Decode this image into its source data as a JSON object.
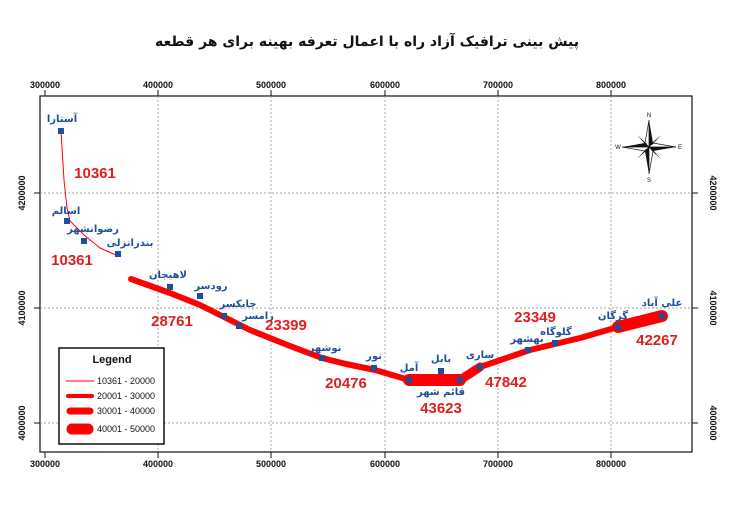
{
  "title": "پیش بینی ترافیک آزاد راه با اعمال تعرفه بهینه برای هر قطعه",
  "x_ticks": [
    "300000",
    "400000",
    "500000",
    "600000",
    "700000",
    "800000"
  ],
  "y_ticks": [
    "4200000",
    "4100000",
    "4000000"
  ],
  "cities": [
    {
      "name": "آستارا"
    },
    {
      "name": "اسالم"
    },
    {
      "name": "رضوانشهر"
    },
    {
      "name": "بندرانزلی"
    },
    {
      "name": "لاهیجان"
    },
    {
      "name": "رودسر"
    },
    {
      "name": "چابکسر"
    },
    {
      "name": "رامسر"
    },
    {
      "name": "نوشهر"
    },
    {
      "name": "نور"
    },
    {
      "name": "آمل"
    },
    {
      "name": "بابل"
    },
    {
      "name": "قائم شهر"
    },
    {
      "name": "ساری"
    },
    {
      "name": "بهشهر"
    },
    {
      "name": "گلوگاه"
    },
    {
      "name": "گرگان"
    },
    {
      "name": "علی آباد"
    }
  ],
  "values": [
    "10361",
    "10361",
    "28761",
    "23399",
    "20476",
    "43623",
    "47842",
    "23349",
    "42267"
  ],
  "legend": {
    "title": "Legend",
    "items": [
      "10361 - 20000",
      "20001 - 30000",
      "30001 - 40000",
      "40001 - 50000"
    ]
  },
  "compass": {
    "n": "N",
    "s": "S",
    "e": "E",
    "w": "W"
  },
  "colors": {
    "route": "#ff0000",
    "city": "#1f4e9e",
    "value": "#e01e1e"
  }
}
